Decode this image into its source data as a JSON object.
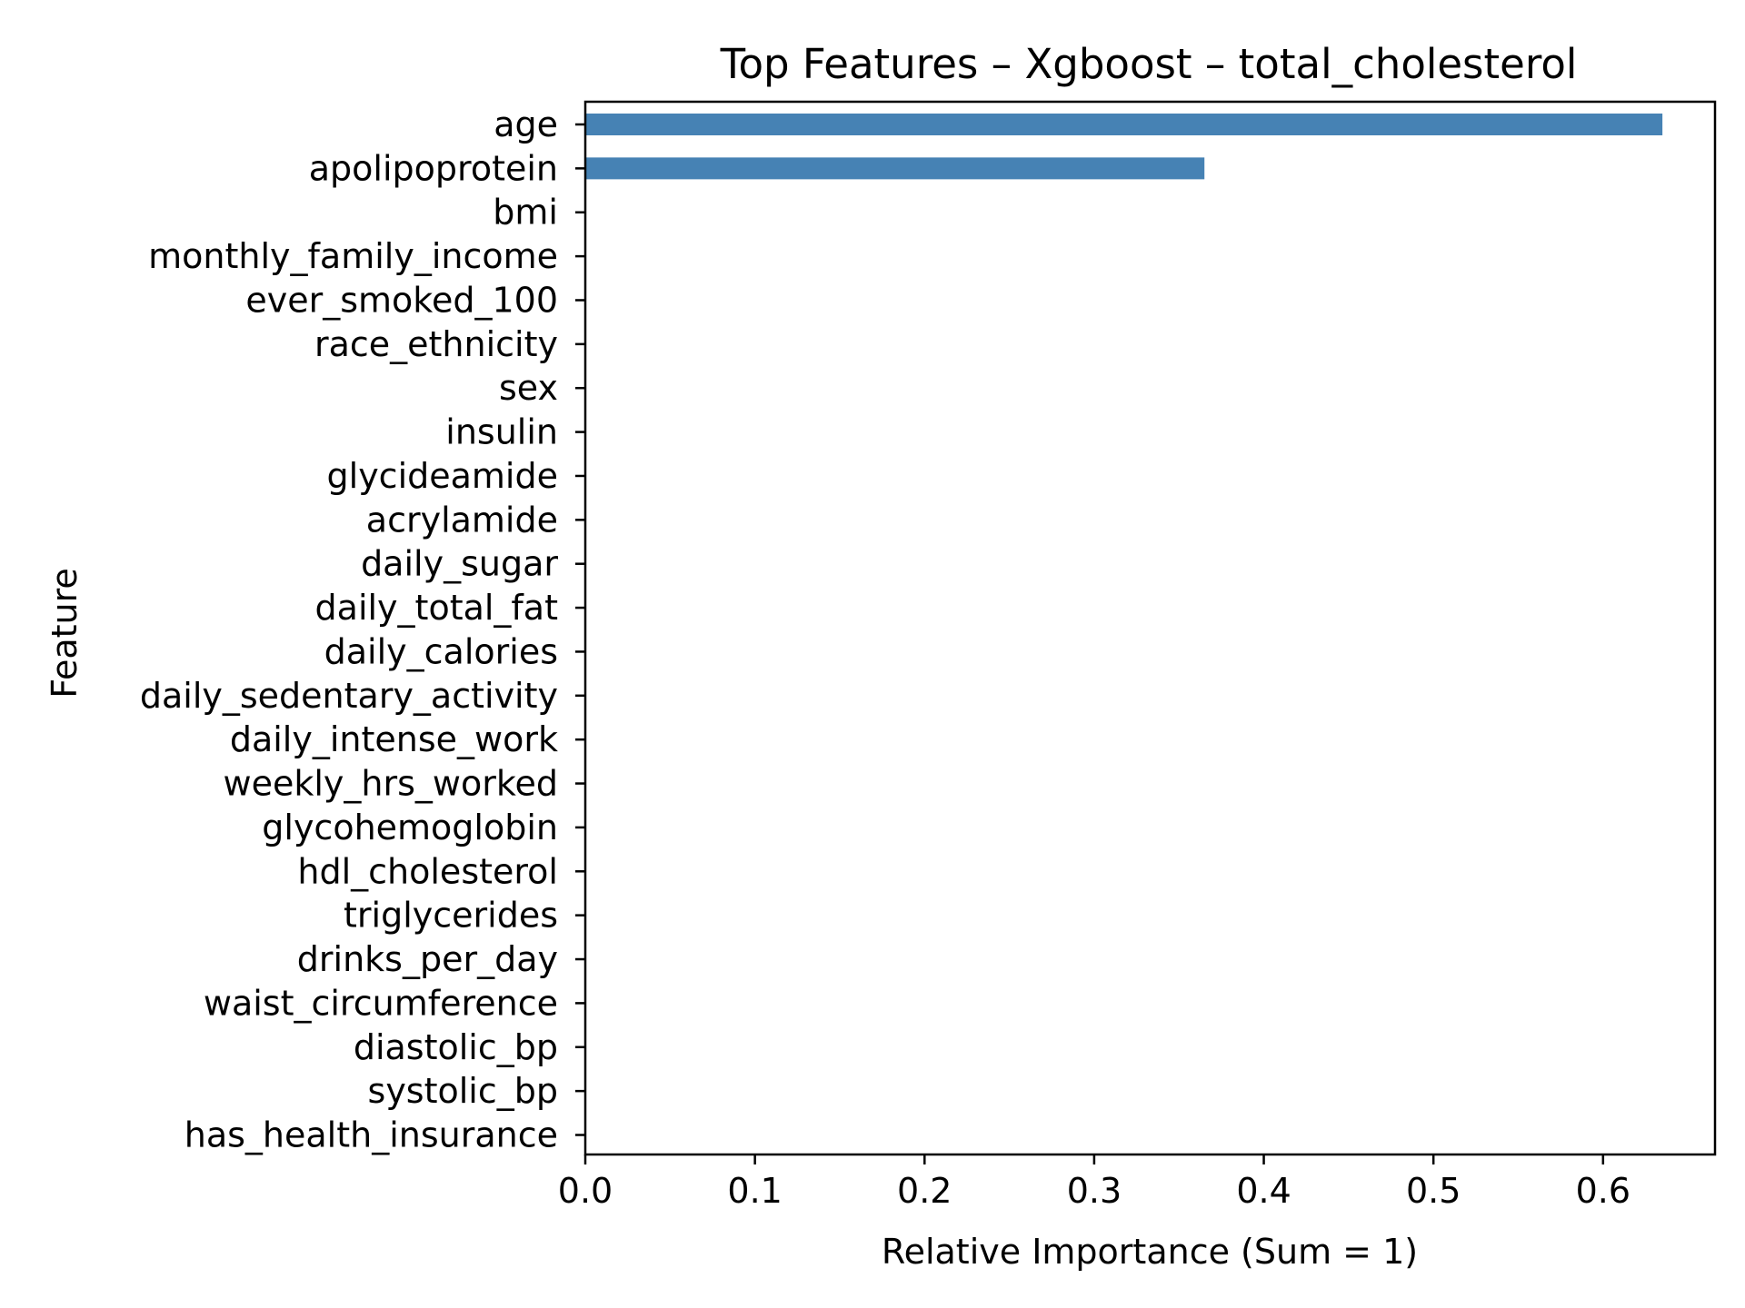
{
  "chart_data": {
    "type": "bar",
    "orientation": "horizontal",
    "title": "Top Features – Xgboost – total_cholesterol",
    "xlabel": "Relative Importance (Sum = 1)",
    "ylabel": "Feature",
    "xlim": [
      0,
      0.666
    ],
    "xticks": [
      0.0,
      0.1,
      0.2,
      0.3,
      0.4,
      0.5,
      0.6
    ],
    "xtick_labels": [
      "0.0",
      "0.1",
      "0.2",
      "0.3",
      "0.4",
      "0.5",
      "0.6"
    ],
    "grid": false,
    "bar_color": "#4682b4",
    "categories": [
      "age",
      "apolipoprotein",
      "bmi",
      "monthly_family_income",
      "ever_smoked_100",
      "race_ethnicity",
      "sex",
      "insulin",
      "glycideamide",
      "acrylamide",
      "daily_sugar",
      "daily_total_fat",
      "daily_calories",
      "daily_sedentary_activity",
      "daily_intense_work",
      "weekly_hrs_worked",
      "glycohemoglobin",
      "hdl_cholesterol",
      "triglycerides",
      "drinks_per_day",
      "waist_circumference",
      "diastolic_bp",
      "systolic_bp",
      "has_health_insurance"
    ],
    "values": [
      0.635,
      0.365,
      0,
      0,
      0,
      0,
      0,
      0,
      0,
      0,
      0,
      0,
      0,
      0,
      0,
      0,
      0,
      0,
      0,
      0,
      0,
      0,
      0,
      0
    ]
  }
}
